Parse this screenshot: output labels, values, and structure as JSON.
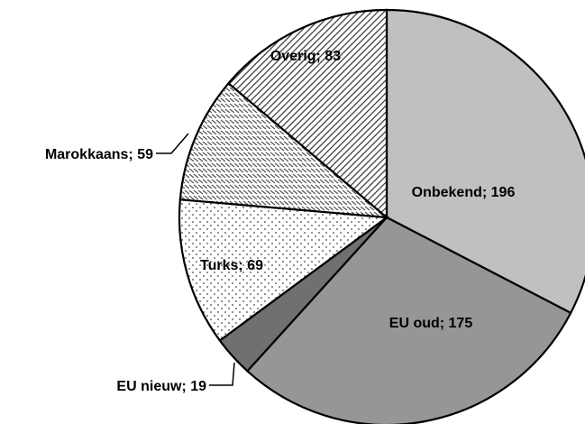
{
  "chart_data": {
    "type": "pie",
    "title": "",
    "start_angle_deg": 90,
    "direction": "clockwise",
    "slices": [
      {
        "label": "Onbekend; 196",
        "category": "Onbekend",
        "value": 196,
        "fill": "#c0c0c0",
        "pattern": "solid"
      },
      {
        "label": "EU oud; 175",
        "category": "EU oud",
        "value": 175,
        "fill": "#969696",
        "pattern": "solid"
      },
      {
        "label": "EU nieuw; 19",
        "category": "EU nieuw",
        "value": 19,
        "fill": "#707070",
        "pattern": "solid"
      },
      {
        "label": "Turks; 69",
        "category": "Turks",
        "value": 69,
        "fill": "#ffffff",
        "pattern": "dots"
      },
      {
        "label": "Marokkaans; 59",
        "category": "Marokkaans",
        "value": 59,
        "fill": "#ffffff",
        "pattern": "horizontal-dashes"
      },
      {
        "label": "Overig; 83",
        "category": "Overig",
        "value": 83,
        "fill": "#ffffff",
        "pattern": "diagonal-hatch"
      }
    ],
    "legend": "none",
    "data_labels": "category; value"
  }
}
